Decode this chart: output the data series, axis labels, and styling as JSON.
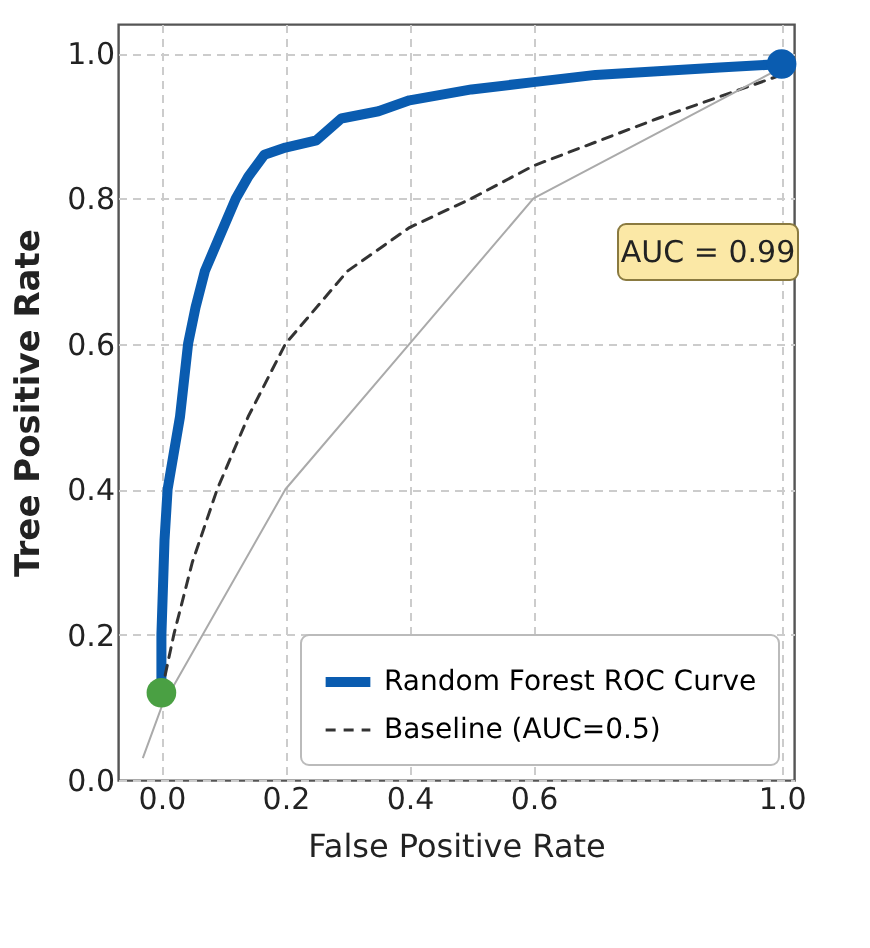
{
  "chart_data": {
    "type": "line",
    "xlabel": "False Positive Rate",
    "ylabel": "Tree Positive Rate",
    "xlim": [
      -0.07,
      1.02
    ],
    "xticks": [
      {
        "value": 0,
        "label": "0.0"
      },
      0.2,
      0.4,
      0.6,
      {
        "value": 1,
        "label": "1.0"
      }
    ],
    "ylim": [
      0.0,
      1.04
    ],
    "yticks": [
      {
        "value": 0,
        "label": "0.0"
      },
      0.2,
      0.4,
      0.6,
      0.8,
      {
        "value": 1,
        "label": "1.0"
      }
    ],
    "grid": true,
    "legend": "bottom right",
    "marker": "none",
    "annotations": [
      "AUC = 0.99"
    ],
    "series": [
      {
        "name": "Random Forest ROC Curve",
        "color": "#0a5cb0",
        "line_style": "solid",
        "x": [
          0,
          0.0,
          0.005,
          0.01,
          0.02,
          0.03,
          0.043,
          0.055,
          0.07,
          0.09,
          0.12,
          0.14,
          0.166,
          0.2,
          0.25,
          0.29,
          0.35,
          0.4,
          0.5,
          0.6,
          0.7,
          0.8,
          0.9,
          1.0
        ],
        "values": [
          0.12,
          0.2,
          0.33,
          0.4,
          0.45,
          0.5,
          0.6,
          0.65,
          0.7,
          0.74,
          0.8,
          0.83,
          0.86,
          0.87,
          0.88,
          0.91,
          0.92,
          0.935,
          0.95,
          0.96,
          0.97,
          0.975,
          0.98,
          0.985
        ]
      },
      {
        "name": "Baseline (AUC=0.5)",
        "color": "#333333",
        "line_style": "dashed",
        "x": [
          0,
          0.02,
          0.05,
          0.09,
          0.14,
          0.2,
          0.3,
          0.4,
          0.5,
          0.6,
          0.8,
          1.0
        ],
        "values": [
          0.12,
          0.2,
          0.3,
          0.4,
          0.5,
          0.6,
          0.7,
          0.76,
          0.8,
          0.845,
          0.91,
          0.97
        ]
      },
      {
        "color": "#aaaaaa",
        "line_style": "solid",
        "x": [
          -0.03,
          0.0,
          0.2,
          0.4,
          0.6,
          1.0
        ],
        "values": [
          0.03,
          0.1,
          0.4,
          0.6,
          0.8,
          0.98
        ]
      },
      {
        "type": "scatter",
        "marker": "circle",
        "color": "#4aa043",
        "x": [
          0.0
        ],
        "values": [
          0.12
        ]
      },
      {
        "type": "scatter",
        "marker": "circle",
        "color": "#0a5cb0",
        "x": [
          1.0
        ],
        "values": [
          0.985
        ]
      }
    ]
  }
}
